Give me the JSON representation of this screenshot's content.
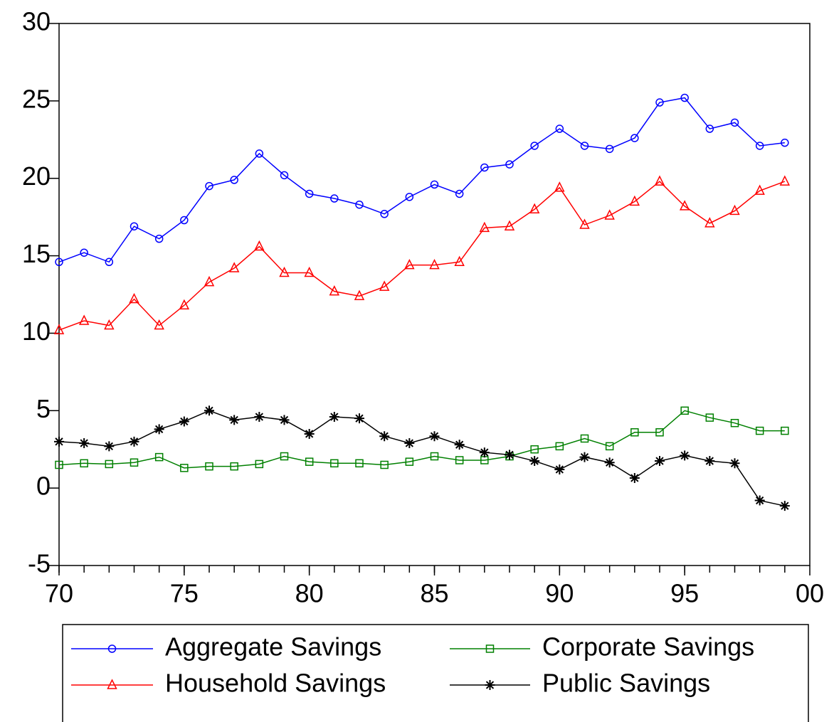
{
  "chart_data": {
    "type": "line",
    "x": [
      70,
      71,
      72,
      73,
      74,
      75,
      76,
      77,
      78,
      79,
      80,
      81,
      82,
      83,
      84,
      85,
      86,
      87,
      88,
      89,
      90,
      91,
      92,
      93,
      94,
      95,
      96,
      97,
      98,
      99
    ],
    "xlim": [
      70,
      100
    ],
    "xticks": [
      70,
      75,
      80,
      85,
      90,
      95,
      {
        "value": 100,
        "label": "00"
      }
    ],
    "ylim": [
      -5,
      30
    ],
    "yticks": [
      -5,
      0,
      5,
      10,
      15,
      20,
      25,
      30
    ],
    "legend": "bottom",
    "series": [
      {
        "name": "Aggregate Savings",
        "color": "#0000ff",
        "marker": "circle",
        "values": [
          14.6,
          15.2,
          14.6,
          16.9,
          16.1,
          17.3,
          19.5,
          19.9,
          21.6,
          20.2,
          19.0,
          18.7,
          18.3,
          17.7,
          18.8,
          19.6,
          19.0,
          20.7,
          20.9,
          22.1,
          23.2,
          22.1,
          21.9,
          22.6,
          24.9,
          25.2,
          23.2,
          23.6,
          22.1,
          22.3
        ]
      },
      {
        "name": "Household Savings",
        "color": "#ff0000",
        "marker": "triangle",
        "values": [
          10.2,
          10.8,
          10.5,
          12.2,
          10.5,
          11.8,
          13.3,
          14.2,
          15.6,
          13.9,
          13.9,
          12.7,
          12.4,
          13.0,
          14.4,
          14.4,
          14.6,
          16.8,
          16.9,
          18.0,
          19.4,
          17.0,
          17.6,
          18.5,
          19.8,
          18.2,
          17.1,
          17.9,
          19.2,
          19.8
        ]
      },
      {
        "name": "Corporate Savings",
        "color": "#008000",
        "marker": "square",
        "values": [
          1.5,
          1.6,
          1.55,
          1.65,
          2.0,
          1.3,
          1.4,
          1.4,
          1.55,
          2.05,
          1.7,
          1.6,
          1.6,
          1.5,
          1.7,
          2.05,
          1.8,
          1.8,
          2.05,
          2.5,
          2.7,
          3.2,
          2.7,
          3.6,
          3.6,
          5.0,
          4.55,
          4.2,
          3.7,
          3.7
        ]
      },
      {
        "name": "Public Savings",
        "color": "#000000",
        "marker": "star",
        "values": [
          3.0,
          2.9,
          2.7,
          3.0,
          3.8,
          4.3,
          5.0,
          4.4,
          4.6,
          4.4,
          3.5,
          4.6,
          4.5,
          3.35,
          2.9,
          3.35,
          2.8,
          2.3,
          2.15,
          1.75,
          1.2,
          2.0,
          1.65,
          0.65,
          1.75,
          2.1,
          1.75,
          1.6,
          -0.8,
          -1.15
        ]
      }
    ]
  }
}
